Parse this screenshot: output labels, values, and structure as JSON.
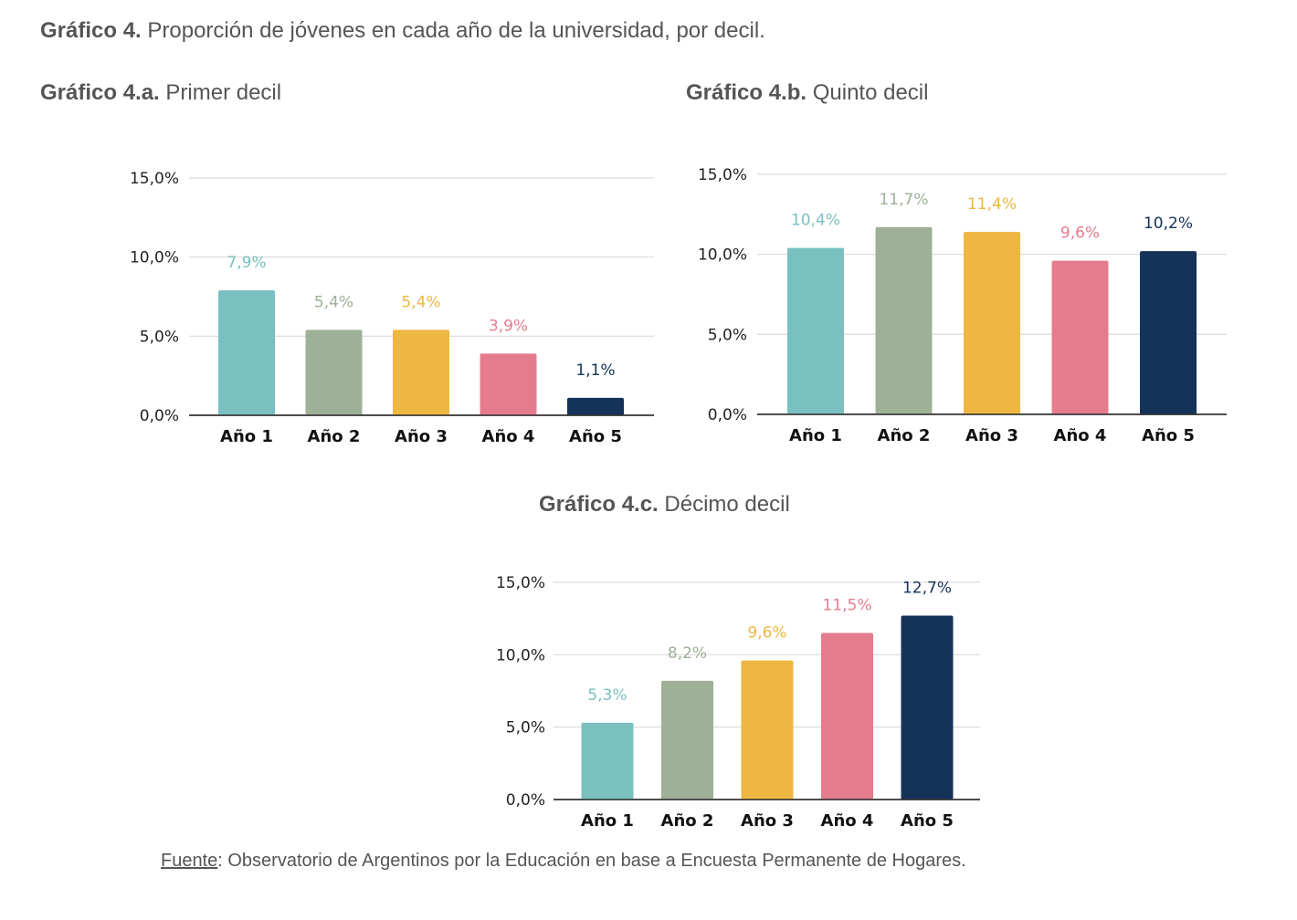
{
  "figure": {
    "title_bold": "Gráfico 4.",
    "title_text": " Proporción de jóvenes en cada año de la universidad, por decil.",
    "source_label": "Fuente",
    "source_text": ": Observatorio de Argentinos por la Educación en base a Encuesta Permanente de Hogares."
  },
  "colors": [
    "#7ac0c0",
    "#9eb096",
    "#edb742",
    "#e57c8e",
    "#15325a"
  ],
  "chart_data": [
    {
      "type": "bar",
      "title_bold": "Gráfico 4.a.",
      "title_text": " Primer decil",
      "categories": [
        "Año 1",
        "Año 2",
        "Año 3",
        "Año 4",
        "Año 5"
      ],
      "values": [
        7.9,
        5.4,
        5.4,
        3.9,
        1.1
      ],
      "data_labels": [
        "7,9%",
        "5,4%",
        "5,4%",
        "3,9%",
        "1,1%"
      ],
      "yticks": [
        "0,0%",
        "5,0%",
        "10,0%",
        "15,0%"
      ],
      "ylim": [
        0,
        15
      ],
      "grid": true,
      "legend": "none"
    },
    {
      "type": "bar",
      "title_bold": "Gráfico 4.b.",
      "title_text": " Quinto decil",
      "categories": [
        "Año 1",
        "Año 2",
        "Año 3",
        "Año 4",
        "Año 5"
      ],
      "values": [
        10.4,
        11.7,
        11.4,
        9.6,
        10.2
      ],
      "data_labels": [
        "10,4%",
        "11,7%",
        "11,4%",
        "9,6%",
        "10,2%"
      ],
      "yticks": [
        "0,0%",
        "5,0%",
        "10,0%",
        "15,0%"
      ],
      "ylim": [
        0,
        15
      ],
      "grid": true,
      "legend": "none"
    },
    {
      "type": "bar",
      "title_bold": "Gráfico 4.c.",
      "title_text": " Décimo decil",
      "categories": [
        "Año 1",
        "Año 2",
        "Año 3",
        "Año 4",
        "Año 5"
      ],
      "values": [
        5.3,
        8.2,
        9.6,
        11.5,
        12.7
      ],
      "data_labels": [
        "5,3%",
        "8,2%",
        "9,6%",
        "11,5%",
        "12,7%"
      ],
      "yticks": [
        "0,0%",
        "5,0%",
        "10,0%",
        "15,0%"
      ],
      "ylim": [
        0,
        15
      ],
      "grid": true,
      "legend": "none"
    }
  ]
}
